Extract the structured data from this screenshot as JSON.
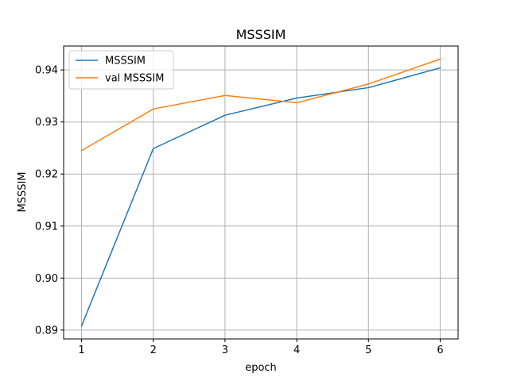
{
  "chart_data": {
    "type": "line",
    "title": "MSSSIM",
    "xlabel": "epoch",
    "ylabel": "MSSSIM",
    "x": [
      1,
      2,
      3,
      4,
      5,
      6
    ],
    "xlim": [
      0.75,
      6.25
    ],
    "ylim": [
      0.8883,
      0.9446
    ],
    "xticks": [
      1,
      2,
      3,
      4,
      5,
      6
    ],
    "yticks": [
      0.89,
      0.9,
      0.91,
      0.92,
      0.93,
      0.94
    ],
    "ytick_labels": [
      "0.89",
      "0.90",
      "0.91",
      "0.92",
      "0.93",
      "0.94"
    ],
    "grid": true,
    "legend_position": "top-left",
    "series": [
      {
        "name": "MSSSIM",
        "color": "#1f77b4",
        "values": [
          0.8908,
          0.9249,
          0.9313,
          0.9346,
          0.9366,
          0.9404
        ]
      },
      {
        "name": "val MSSSIM",
        "color": "#ff7f0e",
        "values": [
          0.9245,
          0.9325,
          0.9351,
          0.9337,
          0.9373,
          0.9421
        ]
      }
    ]
  }
}
